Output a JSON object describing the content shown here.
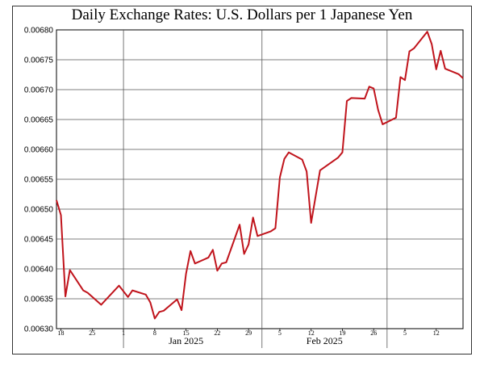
{
  "chart_data": {
    "type": "line",
    "title": "Daily Exchange Rates: U.S. Dollars per 1 Japanese Yen",
    "xlabel": "",
    "ylabel": "",
    "ylim": [
      0.0063,
      0.0068
    ],
    "yticks": [
      "0.00630",
      "0.00635",
      "0.00640",
      "0.00645",
      "0.00650",
      "0.00655",
      "0.00660",
      "0.00665",
      "0.00670",
      "0.00675",
      "0.00680"
    ],
    "grid": true,
    "x_day_labels": [
      {
        "date": "2024-12-18",
        "label": "18"
      },
      {
        "date": "2024-12-25",
        "label": "25"
      },
      {
        "date": "2025-01-01",
        "label": "1"
      },
      {
        "date": "2025-01-08",
        "label": "8"
      },
      {
        "date": "2025-01-15",
        "label": "15"
      },
      {
        "date": "2025-01-22",
        "label": "22"
      },
      {
        "date": "2025-01-29",
        "label": "29"
      },
      {
        "date": "2025-02-05",
        "label": "5"
      },
      {
        "date": "2025-02-12",
        "label": "12"
      },
      {
        "date": "2025-02-19",
        "label": "19"
      },
      {
        "date": "2025-02-26",
        "label": "26"
      },
      {
        "date": "2025-03-05",
        "label": "5"
      },
      {
        "date": "2025-03-12",
        "label": "12"
      }
    ],
    "x_month_labels": [
      {
        "date": "2025-01-15",
        "label": "Jan 2025"
      },
      {
        "date": "2025-02-15",
        "label": "Feb 2025"
      }
    ],
    "month_boundaries": [
      "2025-01-01",
      "2025-02-01",
      "2025-03-01"
    ],
    "series": [
      {
        "color": "#c0141c",
        "points": [
          [
            "2024-12-17",
            0.006515
          ],
          [
            "2024-12-18",
            0.00649
          ],
          [
            "2024-12-19",
            0.006354
          ],
          [
            "2024-12-20",
            0.006398
          ],
          [
            "2024-12-23",
            0.006364
          ],
          [
            "2024-12-24",
            0.00636
          ],
          [
            "2024-12-27",
            0.00634
          ],
          [
            "2024-12-31",
            0.006372
          ],
          [
            "2025-01-02",
            0.006353
          ],
          [
            "2025-01-03",
            0.006364
          ],
          [
            "2025-01-06",
            0.006357
          ],
          [
            "2025-01-07",
            0.006344
          ],
          [
            "2025-01-08",
            0.006317
          ],
          [
            "2025-01-09",
            0.006328
          ],
          [
            "2025-01-10",
            0.00633
          ],
          [
            "2025-01-13",
            0.006349
          ],
          [
            "2025-01-14",
            0.006331
          ],
          [
            "2025-01-15",
            0.006392
          ],
          [
            "2025-01-16",
            0.00643
          ],
          [
            "2025-01-17",
            0.006409
          ],
          [
            "2025-01-20",
            0.006419
          ],
          [
            "2025-01-21",
            0.006432
          ],
          [
            "2025-01-22",
            0.006397
          ],
          [
            "2025-01-23",
            0.006409
          ],
          [
            "2025-01-24",
            0.006411
          ],
          [
            "2025-01-27",
            0.006474
          ],
          [
            "2025-01-28",
            0.006425
          ],
          [
            "2025-01-29",
            0.006441
          ],
          [
            "2025-01-30",
            0.006486
          ],
          [
            "2025-01-31",
            0.006455
          ],
          [
            "2025-02-03",
            0.006463
          ],
          [
            "2025-02-04",
            0.006468
          ],
          [
            "2025-02-05",
            0.006553
          ],
          [
            "2025-02-06",
            0.006584
          ],
          [
            "2025-02-07",
            0.006595
          ],
          [
            "2025-02-10",
            0.006583
          ],
          [
            "2025-02-11",
            0.006563
          ],
          [
            "2025-02-12",
            0.006477
          ],
          [
            "2025-02-14",
            0.006565
          ],
          [
            "2025-02-18",
            0.006586
          ],
          [
            "2025-02-19",
            0.006595
          ],
          [
            "2025-02-20",
            0.006681
          ],
          [
            "2025-02-21",
            0.006686
          ],
          [
            "2025-02-24",
            0.006685
          ],
          [
            "2025-02-25",
            0.006705
          ],
          [
            "2025-02-26",
            0.006702
          ],
          [
            "2025-02-27",
            0.006666
          ],
          [
            "2025-02-28",
            0.006642
          ],
          [
            "2025-03-03",
            0.006653
          ],
          [
            "2025-03-04",
            0.006721
          ],
          [
            "2025-03-05",
            0.006716
          ],
          [
            "2025-03-06",
            0.006764
          ],
          [
            "2025-03-07",
            0.006769
          ],
          [
            "2025-03-10",
            0.006797
          ],
          [
            "2025-03-11",
            0.006776
          ],
          [
            "2025-03-12",
            0.006734
          ],
          [
            "2025-03-13",
            0.006765
          ],
          [
            "2025-03-14",
            0.006735
          ],
          [
            "2025-03-17",
            0.006726
          ],
          [
            "2025-03-18",
            0.006719
          ]
        ]
      }
    ]
  }
}
